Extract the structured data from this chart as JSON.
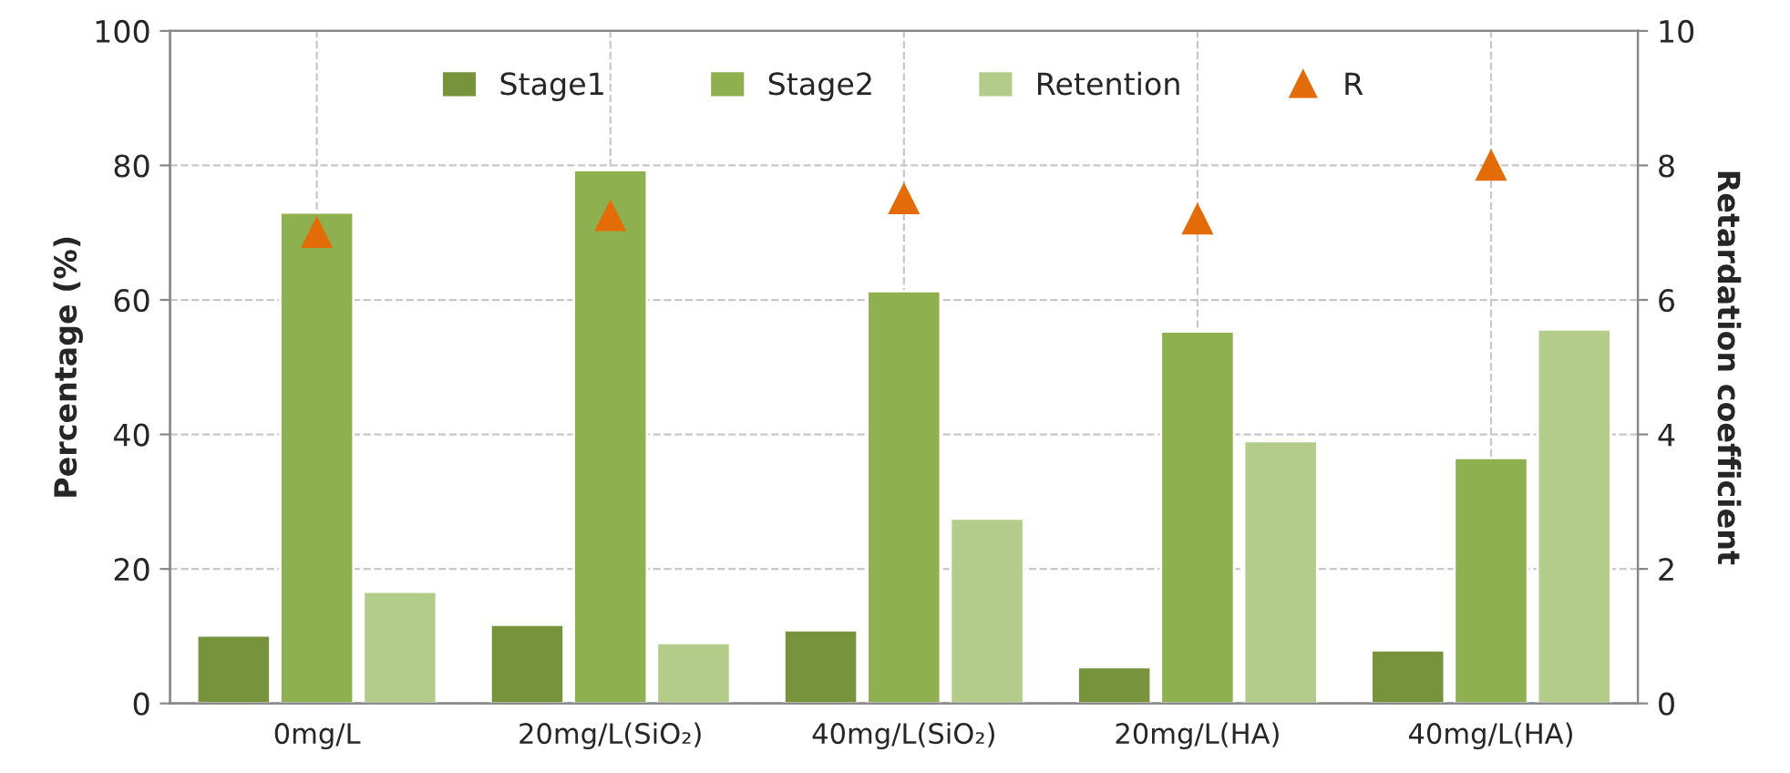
{
  "chart_data": {
    "type": "bar",
    "ylabel": "Percentage (%)",
    "y2label": "Retardation coefficient",
    "categories": [
      "0mg/L",
      "20mg/L(SiO₂)",
      "40mg/L(SiO₂)",
      "20mg/L(HA)",
      "40mg/L(HA)"
    ],
    "series": [
      {
        "name": "Stage1",
        "color": "#77933c",
        "values": [
          10.1,
          11.7,
          10.9,
          5.4,
          7.9
        ]
      },
      {
        "name": "Stage2",
        "color": "#8fb04f",
        "values": [
          73.0,
          79.3,
          61.3,
          55.3,
          36.5
        ]
      },
      {
        "name": "Retention",
        "color": "#b3cc8a",
        "values": [
          16.6,
          9.0,
          27.5,
          39.0,
          55.6
        ]
      },
      {
        "name": "R",
        "type": "scatter",
        "axis": "y2",
        "color": "#e36c09",
        "marker": "triangle",
        "values": [
          7.0,
          7.25,
          7.5,
          7.2,
          8.0
        ]
      }
    ],
    "ylim": [
      0,
      100
    ],
    "yticks": [
      0,
      20,
      40,
      60,
      80,
      100
    ],
    "y2lim": [
      0,
      10
    ],
    "y2ticks": [
      0,
      2,
      4,
      6,
      8,
      10
    ],
    "grid": true,
    "legend": "top"
  }
}
